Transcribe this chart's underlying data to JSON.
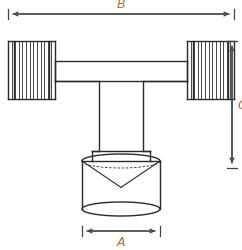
{
  "fig_width": 2.42,
  "fig_height": 2.51,
  "dpi": 100,
  "bg_color": "#ffffff",
  "line_color": "#2a2a2a",
  "dim_color": "#444444",
  "label_color": "#c0692a",
  "B_label": "B",
  "C_label": "C",
  "A_label": "A"
}
